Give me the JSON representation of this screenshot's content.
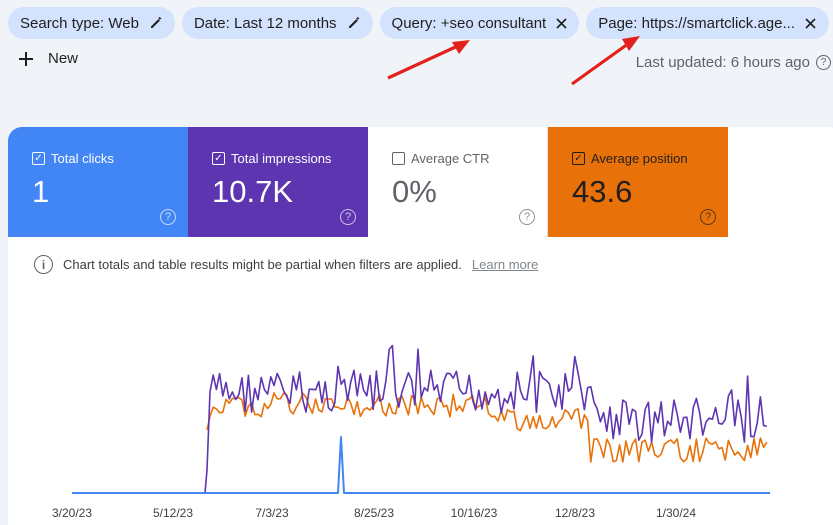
{
  "filters": [
    {
      "label": "Search type: Web",
      "icon": "edit-icon"
    },
    {
      "label": "Date: Last 12 months",
      "icon": "edit-icon"
    },
    {
      "label": "Query: +seo consultant",
      "icon": "close-icon"
    },
    {
      "label": "Page: https://smartclick.age...",
      "icon": "close-icon"
    }
  ],
  "new_label": "New",
  "last_updated": "Last updated: 6 hours ago",
  "metrics": {
    "clicks": {
      "label": "Total clicks",
      "value": "1",
      "checked": true,
      "color": "#4285f4"
    },
    "impressions": {
      "label": "Total impressions",
      "value": "10.7K",
      "checked": true,
      "color": "#5e35b1"
    },
    "ctr": {
      "label": "Average CTR",
      "value": "0%",
      "checked": false
    },
    "position": {
      "label": "Average position",
      "value": "43.6",
      "checked": true,
      "color": "#e8710a"
    }
  },
  "notice": {
    "text": "Chart totals and table results might be partial when filters are applied.",
    "link": "Learn more"
  },
  "chart_data": {
    "type": "line",
    "x_tick_labels": [
      "3/20/23",
      "5/12/23",
      "7/3/23",
      "8/25/23",
      "10/16/23",
      "12/8/23",
      "1/30/24"
    ],
    "series": [
      {
        "name": "Total clicks",
        "color": "#4285f4",
        "values_note": "zero except single spike of 1 near 8/10/23"
      },
      {
        "name": "Total impressions",
        "color": "#5e35b1"
      },
      {
        "name": "Average position",
        "color": "#e8710a"
      }
    ]
  }
}
